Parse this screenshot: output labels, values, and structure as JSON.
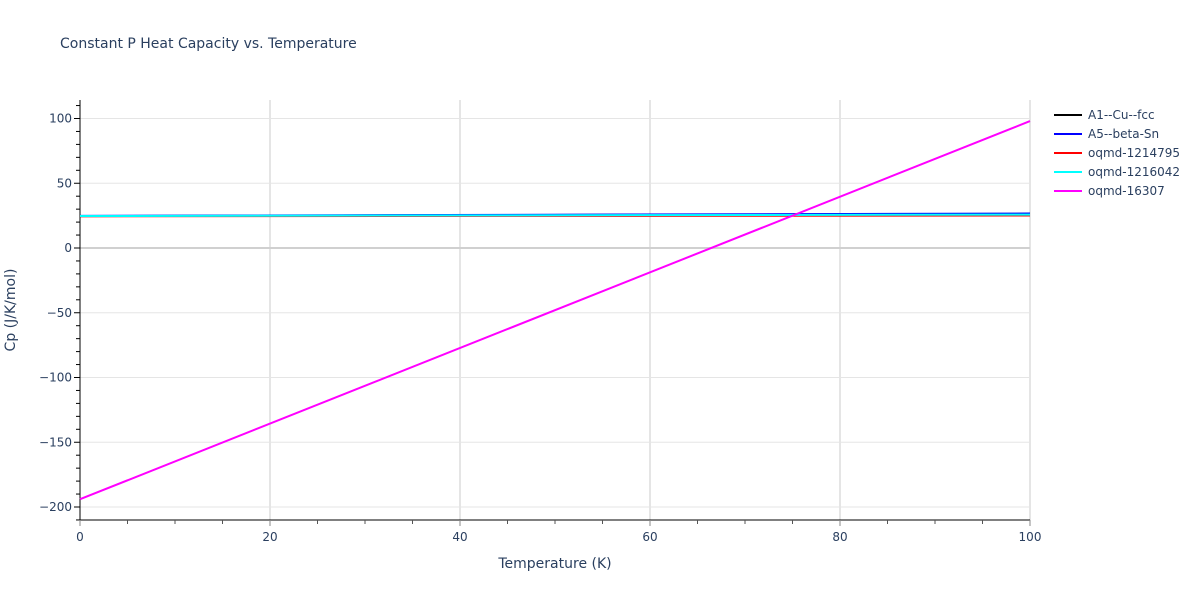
{
  "chart_data": {
    "type": "line",
    "title": "Constant P Heat Capacity vs. Temperature",
    "xlabel": "Temperature (K)",
    "ylabel": "Cp (J/K/mol)",
    "xlim": [
      0,
      100
    ],
    "ylim": [
      -210,
      115
    ],
    "x_ticks": [
      0,
      20,
      40,
      60,
      80,
      100
    ],
    "y_ticks": [
      -200,
      -150,
      -100,
      -50,
      0,
      50,
      100
    ],
    "x_tick_labels": [
      "0",
      "20",
      "40",
      "60",
      "80",
      "100"
    ],
    "y_tick_labels": [
      "−200",
      "−150",
      "−100",
      "−50",
      "0",
      "50",
      "100"
    ],
    "grid": true,
    "legend_position": "right",
    "x": [
      0,
      100
    ],
    "series": [
      {
        "name": "A1--Cu--fcc",
        "color": "#000000",
        "values": [
          24.6,
          26.4
        ]
      },
      {
        "name": "A5--beta-Sn",
        "color": "#0000ff",
        "values": [
          24.8,
          26.6
        ]
      },
      {
        "name": "oqmd-1214795",
        "color": "#ff0000",
        "values": [
          24.5,
          25.1
        ]
      },
      {
        "name": "oqmd-1216042",
        "color": "#00ffff",
        "values": [
          24.7,
          25.8
        ]
      },
      {
        "name": "oqmd-16307",
        "color": "#ff00ff",
        "values": [
          -194,
          98
        ]
      }
    ]
  }
}
